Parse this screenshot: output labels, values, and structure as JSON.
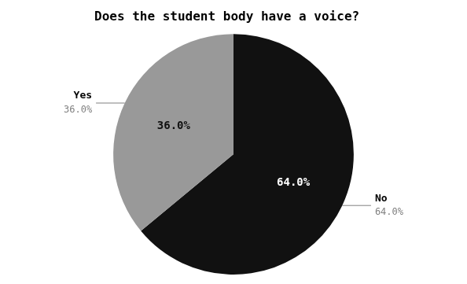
{
  "chart_data": {
    "type": "pie",
    "title": "Does the student body have a voice?",
    "categories": [
      "No",
      "Yes"
    ],
    "values": [
      64.0,
      36.0
    ],
    "value_labels": [
      "64.0%",
      "36.0%"
    ],
    "colors": [
      "#111111",
      "#999999"
    ],
    "data_labels": true
  }
}
